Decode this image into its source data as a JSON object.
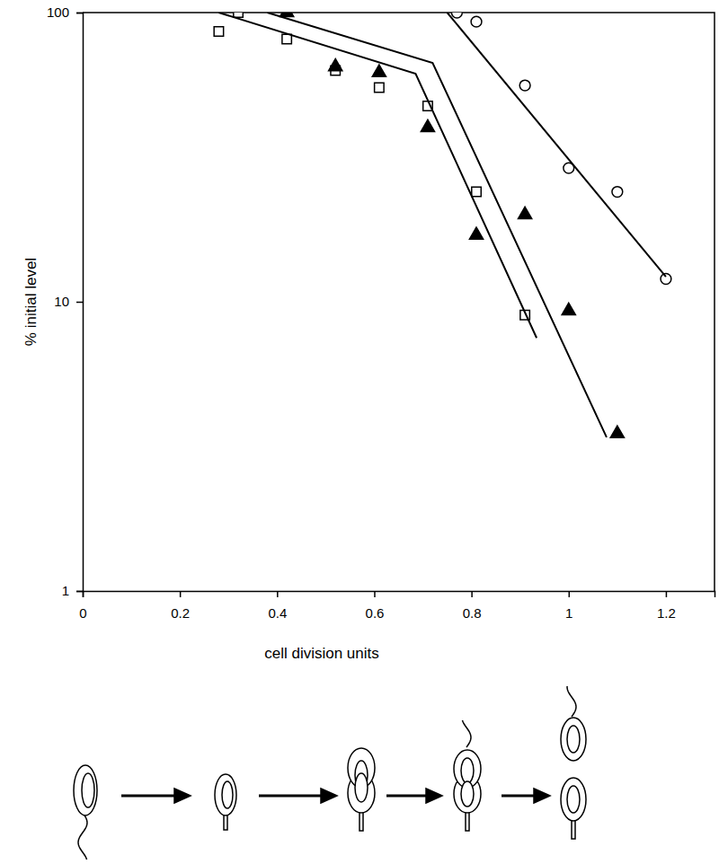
{
  "chart_data": {
    "type": "scatter",
    "x_label": "cell division units",
    "y_label": "% initial level",
    "xlim": [
      0,
      1.3
    ],
    "xticks": [
      0,
      0.2,
      0.4,
      0.6,
      0.8,
      1,
      1.2
    ],
    "ylim": [
      1,
      100
    ],
    "yticks": [
      1,
      10,
      100
    ],
    "log": "y",
    "grid": false,
    "series": [
      {
        "type": "scatter",
        "marker": "square-open",
        "color": "#000000",
        "x": [
          0.28,
          0.32,
          0.42,
          0.52,
          0.61,
          0.71,
          0.81,
          0.91
        ],
        "values": [
          86,
          100,
          81,
          63,
          55,
          47.5,
          24,
          9
        ]
      },
      {
        "type": "scatter",
        "marker": "triangle-filled",
        "color": "#000000",
        "x": [
          0.42,
          0.52,
          0.61,
          0.71,
          0.81,
          0.91,
          1.0,
          1.1
        ],
        "values": [
          100,
          65,
          62,
          40,
          17,
          20,
          9.3,
          3.5
        ]
      },
      {
        "type": "scatter",
        "marker": "circle-open",
        "color": "#000000",
        "x": [
          0.77,
          0.81,
          0.91,
          1.0,
          1.1,
          1.2
        ],
        "values": [
          100,
          93,
          56,
          29,
          24,
          12
        ]
      },
      {
        "type": "line",
        "line_style": "solid",
        "color": "#000000",
        "x": [
          0.28,
          0.685,
          0.934
        ],
        "values": [
          100,
          61.5,
          7.5
        ]
      },
      {
        "type": "line",
        "line_style": "solid",
        "color": "#000000",
        "x": [
          0.38,
          0.72,
          1.078
        ],
        "values": [
          100,
          67,
          3.4
        ]
      },
      {
        "type": "line",
        "line_style": "solid",
        "color": "#000000",
        "x": [
          0.75,
          1.2
        ],
        "values": [
          100,
          12.2
        ]
      }
    ]
  }
}
